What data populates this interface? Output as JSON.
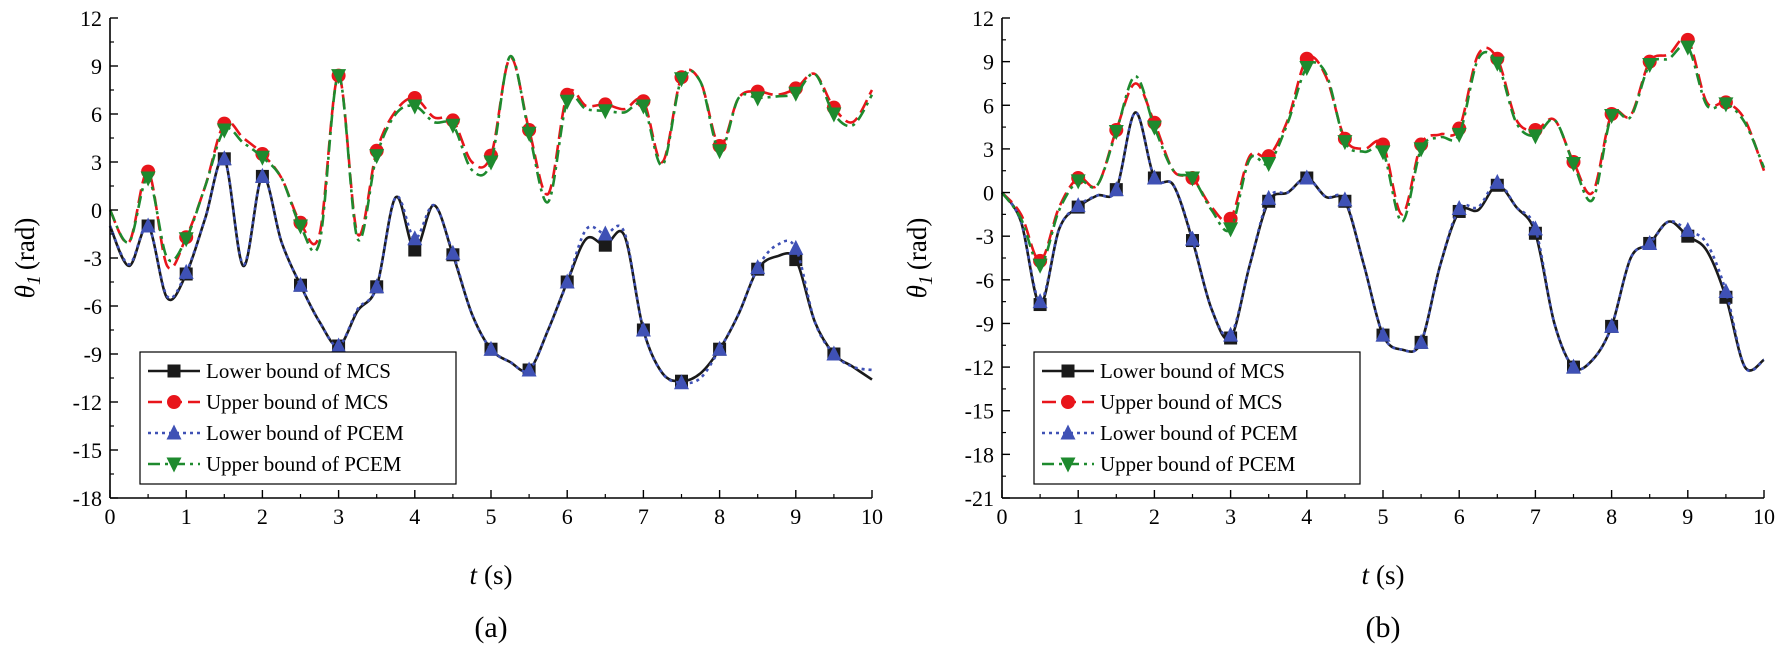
{
  "chart_data": [
    {
      "panel_label": "(a)",
      "type": "line",
      "xlabel": "t (s)",
      "xlabel_italic": "t",
      "xlabel_unit": "(s)",
      "ylabel": "θ1 (rad)",
      "ylabel_symbol": "θ",
      "ylabel_subscript": "1",
      "ylabel_unit": "(rad)",
      "xlim": [
        0,
        10
      ],
      "ylim": [
        -18,
        12
      ],
      "xticks": [
        0,
        1,
        2,
        3,
        4,
        5,
        6,
        7,
        8,
        9,
        10
      ],
      "yticks": [
        12,
        9,
        6,
        3,
        0,
        -3,
        -6,
        -9,
        -12,
        -15,
        -18
      ],
      "legend_position": "lower-left",
      "series": [
        {
          "name": "Lower bound of MCS",
          "color": "#1a1a1a",
          "dash": "solid",
          "marker": "square",
          "x": [
            0,
            0.25,
            0.5,
            0.75,
            1,
            1.25,
            1.5,
            1.75,
            2,
            2.25,
            2.5,
            2.75,
            3,
            3.25,
            3.5,
            3.75,
            4,
            4.25,
            4.5,
            4.75,
            5,
            5.25,
            5.5,
            5.75,
            6,
            6.25,
            6.5,
            6.75,
            7,
            7.25,
            7.5,
            7.75,
            8,
            8.25,
            8.5,
            8.75,
            9,
            9.25,
            9.5,
            9.75,
            10
          ],
          "y": [
            -1,
            -3.5,
            -1,
            -5.5,
            -4,
            -0.5,
            3.2,
            -3.5,
            2.1,
            -2,
            -4.7,
            -7,
            -8.5,
            -6.3,
            -4.8,
            0.8,
            -2.5,
            0.3,
            -2.8,
            -6.5,
            -8.7,
            -9.5,
            -10,
            -7.5,
            -4.5,
            -1.8,
            -2.2,
            -1.6,
            -7.5,
            -10.2,
            -10.7,
            -10.2,
            -8.7,
            -6.5,
            -3.7,
            -2.9,
            -3.1,
            -7,
            -9,
            -9.8,
            -10.6
          ],
          "marker_x": [
            0.5,
            1,
            1.5,
            2,
            2.5,
            3,
            3.5,
            4,
            4.5,
            5,
            5.5,
            6,
            6.5,
            7,
            7.5,
            8,
            8.5,
            9,
            9.5
          ]
        },
        {
          "name": "Upper bound of MCS",
          "color": "#e8151b",
          "dash": "dash",
          "marker": "circle",
          "x": [
            0,
            0.25,
            0.5,
            0.75,
            1,
            1.25,
            1.5,
            1.75,
            2,
            2.25,
            2.5,
            2.75,
            3,
            3.25,
            3.5,
            3.75,
            4,
            4.25,
            4.5,
            4.75,
            5,
            5.25,
            5.5,
            5.75,
            6,
            6.25,
            6.5,
            6.75,
            7,
            7.25,
            7.5,
            7.75,
            8,
            8.25,
            8.5,
            8.75,
            9,
            9.25,
            9.5,
            9.75,
            10
          ],
          "y": [
            0,
            -2,
            2.4,
            -3.5,
            -1.7,
            1.5,
            5.4,
            4.5,
            3.5,
            2,
            -0.8,
            -1.5,
            8.4,
            -1.5,
            3.7,
            6.2,
            7,
            5.8,
            5.6,
            3,
            3.4,
            9.5,
            5,
            1,
            7.2,
            6.5,
            6.6,
            6.3,
            6.8,
            3,
            8.3,
            8,
            4,
            7,
            7.4,
            7.2,
            7.6,
            8.5,
            6.4,
            5.5,
            7.5
          ],
          "marker_x": [
            0.5,
            1,
            1.5,
            2,
            2.5,
            3,
            3.5,
            4,
            4.5,
            5,
            5.5,
            6,
            6.5,
            7,
            7.5,
            8,
            8.5,
            9,
            9.5
          ]
        },
        {
          "name": "Lower bound of PCEM",
          "color": "#3f51b5",
          "dash": "dot",
          "marker": "triangle-up",
          "x": [
            0,
            0.25,
            0.5,
            0.75,
            1,
            1.25,
            1.5,
            1.75,
            2,
            2.25,
            2.5,
            2.75,
            3,
            3.25,
            3.5,
            3.75,
            4,
            4.25,
            4.5,
            4.75,
            5,
            5.25,
            5.5,
            5.75,
            6,
            6.25,
            6.5,
            6.75,
            7,
            7.25,
            7.5,
            7.75,
            8,
            8.25,
            8.5,
            8.75,
            9,
            9.25,
            9.5,
            9.75,
            10
          ],
          "y": [
            -1,
            -3.4,
            -1,
            -5.4,
            -3.9,
            -0.5,
            3.2,
            -3.4,
            2.1,
            -2,
            -4.7,
            -7,
            -8.5,
            -6.2,
            -4.8,
            0.8,
            -1.8,
            0.3,
            -2.7,
            -6.5,
            -8.7,
            -9.5,
            -10,
            -7.5,
            -4.5,
            -1.2,
            -1.5,
            -1.4,
            -7.5,
            -10.2,
            -10.8,
            -10.5,
            -8.7,
            -6.5,
            -3.6,
            -2.2,
            -2.4,
            -7,
            -9,
            -9.8,
            -10
          ],
          "marker_x": [
            0.5,
            1,
            1.5,
            2,
            2.5,
            3,
            3.5,
            4,
            4.5,
            5,
            5.5,
            6,
            6.5,
            7,
            7.5,
            8,
            8.5,
            9,
            9.5
          ]
        },
        {
          "name": "Upper bound of PCEM",
          "color": "#1e8a2e",
          "dash": "dashdot",
          "marker": "triangle-down",
          "x": [
            0,
            0.25,
            0.5,
            0.75,
            1,
            1.25,
            1.5,
            1.75,
            2,
            2.25,
            2.5,
            2.75,
            3,
            3.25,
            3.5,
            3.75,
            4,
            4.25,
            4.5,
            4.75,
            5,
            5.25,
            5.5,
            5.75,
            6,
            6.25,
            6.5,
            6.75,
            7,
            7.25,
            7.5,
            7.75,
            8,
            8.25,
            8.5,
            8.75,
            9,
            9.25,
            9.5,
            9.75,
            10
          ],
          "y": [
            0,
            -2,
            2,
            -3,
            -1.8,
            1.5,
            5,
            4.2,
            3.3,
            2,
            -1,
            -2,
            8.4,
            -1.8,
            3.4,
            6,
            6.5,
            5.5,
            5.3,
            2.5,
            3,
            9.6,
            4.8,
            0.5,
            6.8,
            6.3,
            6.2,
            6.1,
            6.5,
            2.8,
            8.2,
            8,
            3.7,
            7,
            7,
            7.1,
            7.3,
            8.5,
            6,
            5.3,
            7.2
          ],
          "marker_x": [
            0.5,
            1,
            1.5,
            2,
            2.5,
            3,
            3.5,
            4,
            4.5,
            5,
            5.5,
            6,
            6.5,
            7,
            7.5,
            8,
            8.5,
            9,
            9.5
          ]
        }
      ]
    },
    {
      "panel_label": "(b)",
      "type": "line",
      "xlabel": "t (s)",
      "xlabel_italic": "t",
      "xlabel_unit": "(s)",
      "ylabel": "θ1 (rad)",
      "ylabel_symbol": "θ",
      "ylabel_subscript": "1",
      "ylabel_unit": "(rad)",
      "xlim": [
        0,
        10
      ],
      "ylim": [
        -21,
        12
      ],
      "xticks": [
        0,
        1,
        2,
        3,
        4,
        5,
        6,
        7,
        8,
        9,
        10
      ],
      "yticks": [
        12,
        9,
        6,
        3,
        0,
        -3,
        -6,
        -9,
        -12,
        -15,
        -18,
        -21
      ],
      "legend_position": "lower-left",
      "series": [
        {
          "name": "Lower bound of MCS",
          "color": "#1a1a1a",
          "dash": "solid",
          "marker": "square",
          "x": [
            0,
            0.25,
            0.5,
            0.75,
            1,
            1.25,
            1.5,
            1.75,
            2,
            2.25,
            2.5,
            2.75,
            3,
            3.25,
            3.5,
            3.75,
            4,
            4.25,
            4.5,
            4.75,
            5,
            5.25,
            5.5,
            5.75,
            6,
            6.25,
            6.5,
            6.75,
            7,
            7.25,
            7.5,
            7.75,
            8,
            8.25,
            8.5,
            8.75,
            9,
            9.25,
            9.5,
            9.75,
            10
          ],
          "y": [
            0,
            -2,
            -7.7,
            -2.5,
            -1,
            -0.2,
            0.2,
            5.5,
            1,
            0.5,
            -3.3,
            -8,
            -10,
            -5,
            -0.6,
            0,
            1,
            -0.3,
            -0.6,
            -5,
            -9.8,
            -10.8,
            -10.3,
            -5,
            -1.3,
            -1.2,
            0.5,
            -1,
            -2.8,
            -9,
            -12,
            -11.5,
            -9.2,
            -4.5,
            -3.5,
            -2,
            -3,
            -4,
            -7.2,
            -12,
            -11.5
          ],
          "marker_x": [
            0.5,
            1,
            1.5,
            2,
            2.5,
            3,
            3.5,
            4,
            4.5,
            5,
            5.5,
            6,
            6.5,
            7,
            7.5,
            8,
            8.5,
            9,
            9.5
          ]
        },
        {
          "name": "Upper bound of MCS",
          "color": "#e8151b",
          "dash": "dash",
          "marker": "circle",
          "x": [
            0,
            0.25,
            0.5,
            0.75,
            1,
            1.25,
            1.5,
            1.75,
            2,
            2.25,
            2.5,
            2.75,
            3,
            3.25,
            3.5,
            3.75,
            4,
            4.25,
            4.5,
            4.75,
            5,
            5.25,
            5.5,
            5.75,
            6,
            6.25,
            6.5,
            6.75,
            7,
            7.25,
            7.5,
            7.75,
            8,
            8.25,
            8.5,
            8.75,
            9,
            9.25,
            9.5,
            9.75,
            10
          ],
          "y": [
            0,
            -1.5,
            -4.7,
            -1,
            1,
            0.5,
            4.3,
            7.5,
            4.8,
            1.5,
            1,
            -1,
            -1.8,
            2.5,
            2.5,
            5,
            9.2,
            8,
            3.7,
            3,
            3.3,
            -1.5,
            3.3,
            4,
            4.4,
            9.5,
            9.2,
            5,
            4.3,
            5,
            2.1,
            0,
            5.4,
            5.3,
            9,
            9.5,
            10.5,
            6.2,
            6.2,
            5,
            1.5
          ],
          "marker_x": [
            0.5,
            1,
            1.5,
            2,
            2.5,
            3,
            3.5,
            4,
            4.5,
            5,
            5.5,
            6,
            6.5,
            7,
            7.5,
            8,
            8.5,
            9,
            9.5
          ]
        },
        {
          "name": "Lower bound of PCEM",
          "color": "#3f51b5",
          "dash": "dot",
          "marker": "triangle-up",
          "x": [
            0,
            0.25,
            0.5,
            0.75,
            1,
            1.25,
            1.5,
            1.75,
            2,
            2.25,
            2.5,
            2.75,
            3,
            3.25,
            3.5,
            3.75,
            4,
            4.25,
            4.5,
            4.75,
            5,
            5.25,
            5.5,
            5.75,
            6,
            6.25,
            6.5,
            6.75,
            7,
            7.25,
            7.5,
            7.75,
            8,
            8.25,
            8.5,
            8.75,
            9,
            9.25,
            9.5,
            9.75,
            10
          ],
          "y": [
            0,
            -2,
            -7.5,
            -2.5,
            -0.9,
            -0.2,
            0.2,
            5.5,
            1,
            0.5,
            -3.2,
            -8,
            -9.8,
            -5,
            -0.4,
            0,
            1,
            -0.3,
            -0.5,
            -5,
            -9.8,
            -10.8,
            -10.3,
            -5,
            -1.1,
            -1,
            0.7,
            -1,
            -2.5,
            -9,
            -12,
            -11.5,
            -9.2,
            -4.5,
            -3.5,
            -2,
            -2.6,
            -3.5,
            -6.8,
            -12,
            -11.5
          ],
          "marker_x": [
            0.5,
            1,
            1.5,
            2,
            2.5,
            3,
            3.5,
            4,
            4.5,
            5,
            5.5,
            6,
            6.5,
            7,
            7.5,
            8,
            8.5,
            9,
            9.5
          ]
        },
        {
          "name": "Upper bound of PCEM",
          "color": "#1e8a2e",
          "dash": "dashdot",
          "marker": "triangle-down",
          "x": [
            0,
            0.25,
            0.5,
            0.75,
            1,
            1.25,
            1.5,
            1.75,
            2,
            2.25,
            2.5,
            2.75,
            3,
            3.25,
            3.5,
            3.75,
            4,
            4.25,
            4.5,
            4.75,
            5,
            5.25,
            5.5,
            5.75,
            6,
            6.25,
            6.5,
            6.75,
            7,
            7.25,
            7.5,
            7.75,
            8,
            8.25,
            8.5,
            8.75,
            9,
            9.25,
            9.5,
            9.75,
            10
          ],
          "y": [
            0,
            -1.8,
            -5,
            -1.2,
            0.8,
            0.5,
            4.2,
            8,
            4.5,
            1.5,
            1,
            -1.2,
            -2.5,
            2.3,
            2,
            4.8,
            8.6,
            8.2,
            3.5,
            2.8,
            2.8,
            -2,
            3,
            3.8,
            4,
            9.2,
            8.9,
            4.8,
            3.9,
            5,
            2,
            -0.5,
            5.3,
            5.2,
            8.8,
            9.2,
            10,
            6,
            6.1,
            4.8,
            1.7
          ],
          "marker_x": [
            0.5,
            1,
            1.5,
            2,
            2.5,
            3,
            3.5,
            4,
            4.5,
            5,
            5.5,
            6,
            6.5,
            7,
            7.5,
            8,
            8.5,
            9,
            9.5
          ]
        }
      ]
    }
  ]
}
